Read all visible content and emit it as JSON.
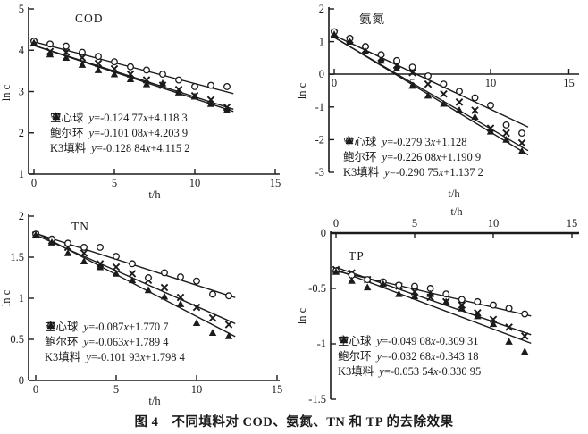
{
  "caption": "图 4　不同填料对 COD、氨氮、TN 和 TP 的去除效果",
  "colors": {
    "ink": "#1b1b1b",
    "background": "#ffffff"
  },
  "legend_markers": {
    "空心球": "x-cross",
    "鲍尔环": "hollow-circle",
    "K3填料": "filled-triangle"
  },
  "chart_data": [
    {
      "key": "cod",
      "type": "scatter",
      "title": "COD",
      "xlabel": "t/h",
      "ylabel": "ln c",
      "xlim": [
        0,
        15
      ],
      "ylim": [
        1,
        5
      ],
      "x_ticks": [
        0,
        5,
        10,
        15
      ],
      "y_ticks": [
        5,
        4,
        3,
        2,
        1
      ],
      "grid": false,
      "legend_position": "lower-left-inside",
      "x": [
        0,
        1,
        2,
        3,
        4,
        5,
        6,
        7,
        8,
        9,
        10,
        11,
        12
      ],
      "series": [
        {
          "name": "空心球",
          "marker": "x",
          "equation": "y=-0.124 77x+4.118 3",
          "slope": -0.12477,
          "intercept": 4.1183,
          "values": [
            4.18,
            3.97,
            3.95,
            3.82,
            3.68,
            3.55,
            3.42,
            3.28,
            3.15,
            3.05,
            2.9,
            2.8,
            2.62
          ]
        },
        {
          "name": "鲍尔环",
          "marker": "circle",
          "equation": "y=-0.101 08x+4.203 9",
          "slope": -0.10108,
          "intercept": 4.2039,
          "values": [
            4.22,
            4.15,
            4.1,
            3.95,
            3.85,
            3.72,
            3.6,
            3.52,
            3.42,
            3.28,
            3.12,
            3.15,
            3.12
          ]
        },
        {
          "name": "K3填料",
          "marker": "triangle",
          "equation": "y=-0.128 84x+4.115 2",
          "slope": -0.12884,
          "intercept": 4.1152,
          "values": [
            4.18,
            3.9,
            3.82,
            3.65,
            3.52,
            3.42,
            3.3,
            3.18,
            3.2,
            2.98,
            2.88,
            2.7,
            2.55
          ]
        }
      ]
    },
    {
      "key": "ammonia",
      "type": "scatter",
      "title": "氨氮",
      "xlabel": "t/h",
      "ylabel": "ln c",
      "xlim": [
        0,
        15
      ],
      "ylim": [
        -3,
        2
      ],
      "x_ticks": [
        0,
        5,
        10,
        15
      ],
      "y_ticks": [
        2,
        1,
        0,
        -1,
        -2,
        -3
      ],
      "grid": false,
      "x_axis_at_zero": true,
      "legend_position": "lower-left-inside",
      "x": [
        0,
        1,
        2,
        3,
        4,
        5,
        6,
        7,
        8,
        9,
        10,
        11,
        12
      ],
      "series": [
        {
          "name": "空心球",
          "marker": "x",
          "equation": "y=-0.279 3x+1.128",
          "slope": -0.2793,
          "intercept": 1.128,
          "values": [
            1.25,
            1.05,
            0.75,
            0.5,
            0.28,
            0.05,
            -0.3,
            -0.6,
            -0.85,
            -1.1,
            -1.65,
            -1.8,
            -2.1
          ]
        },
        {
          "name": "鲍尔环",
          "marker": "circle",
          "equation": "y=-0.226 08x+1.190 9",
          "slope": -0.22608,
          "intercept": 1.1909,
          "values": [
            1.3,
            1.1,
            0.85,
            0.6,
            0.42,
            0.22,
            -0.05,
            -0.3,
            -0.52,
            -0.72,
            -0.95,
            -1.55,
            -1.8
          ]
        },
        {
          "name": "K3填料",
          "marker": "triangle",
          "equation": "y=-0.290 75x+1.137 2",
          "slope": -0.29075,
          "intercept": 1.1372,
          "values": [
            1.22,
            1.0,
            0.7,
            0.42,
            0.18,
            -0.35,
            -0.65,
            -0.9,
            -1.1,
            -1.3,
            -1.75,
            -2.0,
            -2.35
          ]
        }
      ]
    },
    {
      "key": "tn",
      "type": "scatter",
      "title": "TN",
      "xlabel": "t/h",
      "ylabel": "ln c",
      "xlim": [
        0,
        15
      ],
      "ylim": [
        0,
        2
      ],
      "x_ticks": [
        0,
        5,
        10,
        15
      ],
      "y_ticks": [
        2,
        1.5,
        1,
        0.5,
        0
      ],
      "grid": false,
      "legend_position": "lower-left-inside",
      "x": [
        0,
        1,
        2,
        3,
        4,
        5,
        6,
        7,
        8,
        9,
        10,
        11,
        12
      ],
      "series": [
        {
          "name": "空心球",
          "marker": "x",
          "equation": "y=-0.087x+1.770 7",
          "slope": -0.087,
          "intercept": 1.7707,
          "values": [
            1.77,
            1.7,
            1.62,
            1.55,
            1.42,
            1.38,
            1.3,
            1.22,
            1.13,
            1.01,
            0.89,
            0.76,
            0.68
          ]
        },
        {
          "name": "鲍尔环",
          "marker": "circle",
          "equation": "y=-0.063x+1.789 4",
          "slope": -0.063,
          "intercept": 1.7894,
          "values": [
            1.78,
            1.72,
            1.67,
            1.62,
            1.62,
            1.51,
            1.42,
            1.25,
            1.31,
            1.26,
            1.21,
            1.05,
            1.03
          ]
        },
        {
          "name": "K3填料",
          "marker": "triangle",
          "equation": "y=-0.101 93x+1.798 4",
          "slope": -0.10193,
          "intercept": 1.7984,
          "values": [
            1.77,
            1.68,
            1.55,
            1.45,
            1.38,
            1.3,
            1.22,
            1.1,
            1.02,
            0.93,
            0.7,
            0.58,
            0.54
          ]
        }
      ]
    },
    {
      "key": "tp",
      "type": "scatter",
      "title": "TP",
      "xlabel": "t/h",
      "ylabel": "ln c",
      "xlim": [
        0,
        15
      ],
      "ylim": [
        -1.5,
        0
      ],
      "x_ticks": [
        0,
        5,
        10,
        15
      ],
      "y_ticks": [
        0,
        -0.5,
        -1,
        -1.5
      ],
      "grid": false,
      "x_axis_at_top": true,
      "legend_position": "lower-left-inside",
      "x": [
        0,
        1,
        2,
        3,
        4,
        5,
        6,
        7,
        8,
        9,
        10,
        11,
        12
      ],
      "series": [
        {
          "name": "空心球",
          "marker": "x",
          "equation": "y=-0.049 08x-0.309 31",
          "slope": -0.04908,
          "intercept": -0.30931,
          "values": [
            -0.33,
            -0.36,
            -0.42,
            -0.45,
            -0.48,
            -0.53,
            -0.58,
            -0.62,
            -0.65,
            -0.72,
            -0.78,
            -0.85,
            -0.93
          ]
        },
        {
          "name": "鲍尔环",
          "marker": "circle",
          "equation": "y=-0.032 68x-0.343 18",
          "slope": -0.03268,
          "intercept": -0.34318,
          "values": [
            -0.34,
            -0.38,
            -0.42,
            -0.44,
            -0.47,
            -0.48,
            -0.5,
            -0.55,
            -0.6,
            -0.62,
            -0.65,
            -0.68,
            -0.73
          ]
        },
        {
          "name": "K3填料",
          "marker": "triangle",
          "equation": "y=-0.053 54x-0.330 95",
          "slope": -0.05354,
          "intercept": -0.33095,
          "values": [
            -0.35,
            -0.43,
            -0.49,
            -0.46,
            -0.55,
            -0.57,
            -0.55,
            -0.62,
            -0.68,
            -0.75,
            -0.82,
            -0.98,
            -1.07
          ]
        }
      ]
    }
  ]
}
